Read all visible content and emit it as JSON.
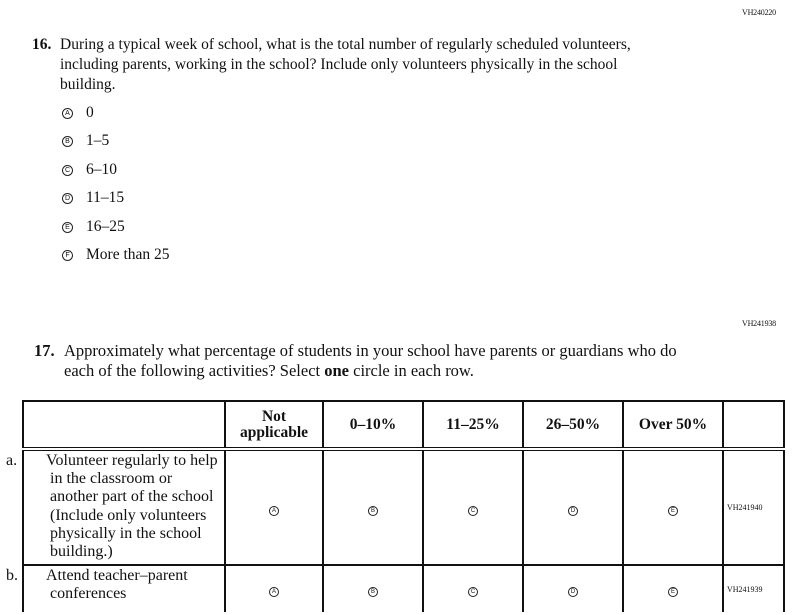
{
  "q16": {
    "code": "VH240220",
    "number": "16.",
    "text": "During a typical week of school, what is the total number of regularly scheduled volunteers, including parents, working in the school? Include only volunteers physically in the school building.",
    "options": [
      {
        "bubble": "A",
        "label": "0"
      },
      {
        "bubble": "B",
        "label": "1–5"
      },
      {
        "bubble": "C",
        "label": "6–10"
      },
      {
        "bubble": "D",
        "label": "11–15"
      },
      {
        "bubble": "E",
        "label": "16–25"
      },
      {
        "bubble": "F",
        "label": "More than 25"
      }
    ]
  },
  "q17": {
    "code": "VH241938",
    "number": "17.",
    "text_before": "Approximately what percentage of students in your school have parents or guardians who do each of the following activities? Select ",
    "text_bold": "one",
    "text_after": " circle in each row.",
    "columns": [
      "Not applicable",
      "0–10%",
      "11–25%",
      "26–50%",
      "Over 50%"
    ],
    "bubbles": [
      "A",
      "B",
      "C",
      "D",
      "E"
    ],
    "rows": [
      {
        "label": "a.",
        "text": "Volunteer regularly to help in the classroom or another part of the school (Include only volunteers physically in the school building.)",
        "code": "VH241940"
      },
      {
        "label": "b.",
        "text": "Attend teacher–parent conferences",
        "code": "VH241939"
      }
    ]
  }
}
